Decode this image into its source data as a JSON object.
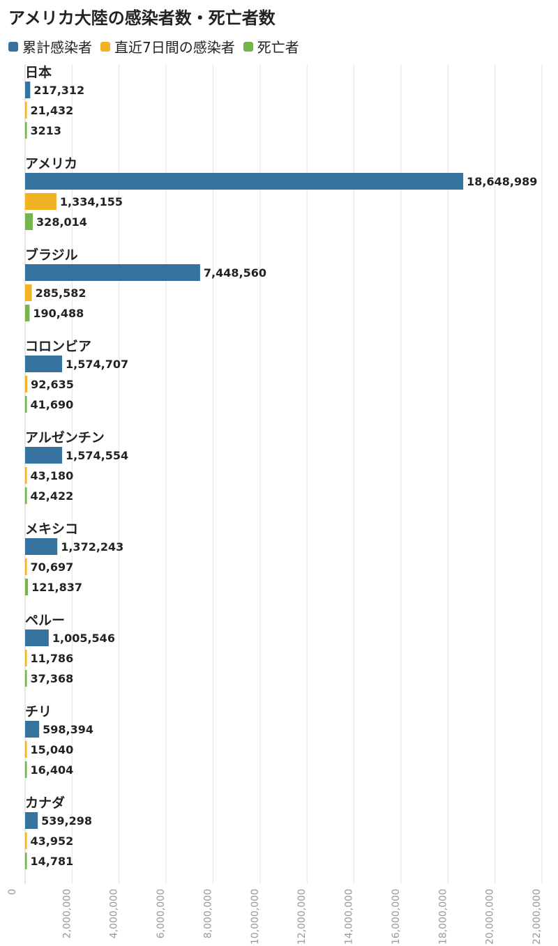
{
  "title": "アメリカ大陸の感染者数・死亡者数",
  "legend": [
    {
      "label": "累計感染者",
      "color": "#35739e"
    },
    {
      "label": "直近7日間の感染者",
      "color": "#f0b323"
    },
    {
      "label": "死亡者",
      "color": "#78b44e"
    }
  ],
  "chart_data": {
    "type": "bar",
    "orientation": "horizontal",
    "title": "アメリカ大陸の感染者数・死亡者数",
    "categories": [
      "日本",
      "アメリカ",
      "ブラジル",
      "コロンビア",
      "アルゼンチン",
      "メキシコ",
      "ペルー",
      "チリ",
      "カナダ"
    ],
    "series": [
      {
        "name": "累計感染者",
        "color": "#35739e",
        "values": [
          217312,
          18648989,
          7448560,
          1574707,
          1574554,
          1372243,
          1005546,
          598394,
          539298
        ],
        "labels": [
          "217,312",
          "18,648,989",
          "7,448,560",
          "1,574,707",
          "1,574,554",
          "1,372,243",
          "1,005,546",
          "598,394",
          "539,298"
        ]
      },
      {
        "name": "直近7日間の感染者",
        "color": "#f0b323",
        "values": [
          21432,
          1334155,
          285582,
          92635,
          43180,
          70697,
          11786,
          15040,
          43952
        ],
        "labels": [
          "21,432",
          "1,334,155",
          "285,582",
          "92,635",
          "43,180",
          "70,697",
          "11,786",
          "15,040",
          "43,952"
        ]
      },
      {
        "name": "死亡者",
        "color": "#78b44e",
        "values": [
          3213,
          328014,
          190488,
          41690,
          42422,
          121837,
          37368,
          16404,
          14781
        ],
        "labels": [
          "3213",
          "328,014",
          "190,488",
          "41,690",
          "42,422",
          "121,837",
          "37,368",
          "16,404",
          "14,781"
        ]
      }
    ],
    "xlim": [
      0,
      22000000
    ],
    "xticks": [
      0,
      2000000,
      4000000,
      6000000,
      8000000,
      10000000,
      12000000,
      14000000,
      16000000,
      18000000,
      20000000,
      22000000
    ],
    "xtick_labels": [
      "0",
      "2,000,000",
      "4,000,000",
      "6,000,000",
      "8,000,000",
      "10,000,000",
      "12,000,000",
      "14,000,000",
      "16,000,000",
      "18,000,000",
      "20,000,000",
      "22,000,000"
    ],
    "grid": true,
    "legend_position": "top-left"
  }
}
